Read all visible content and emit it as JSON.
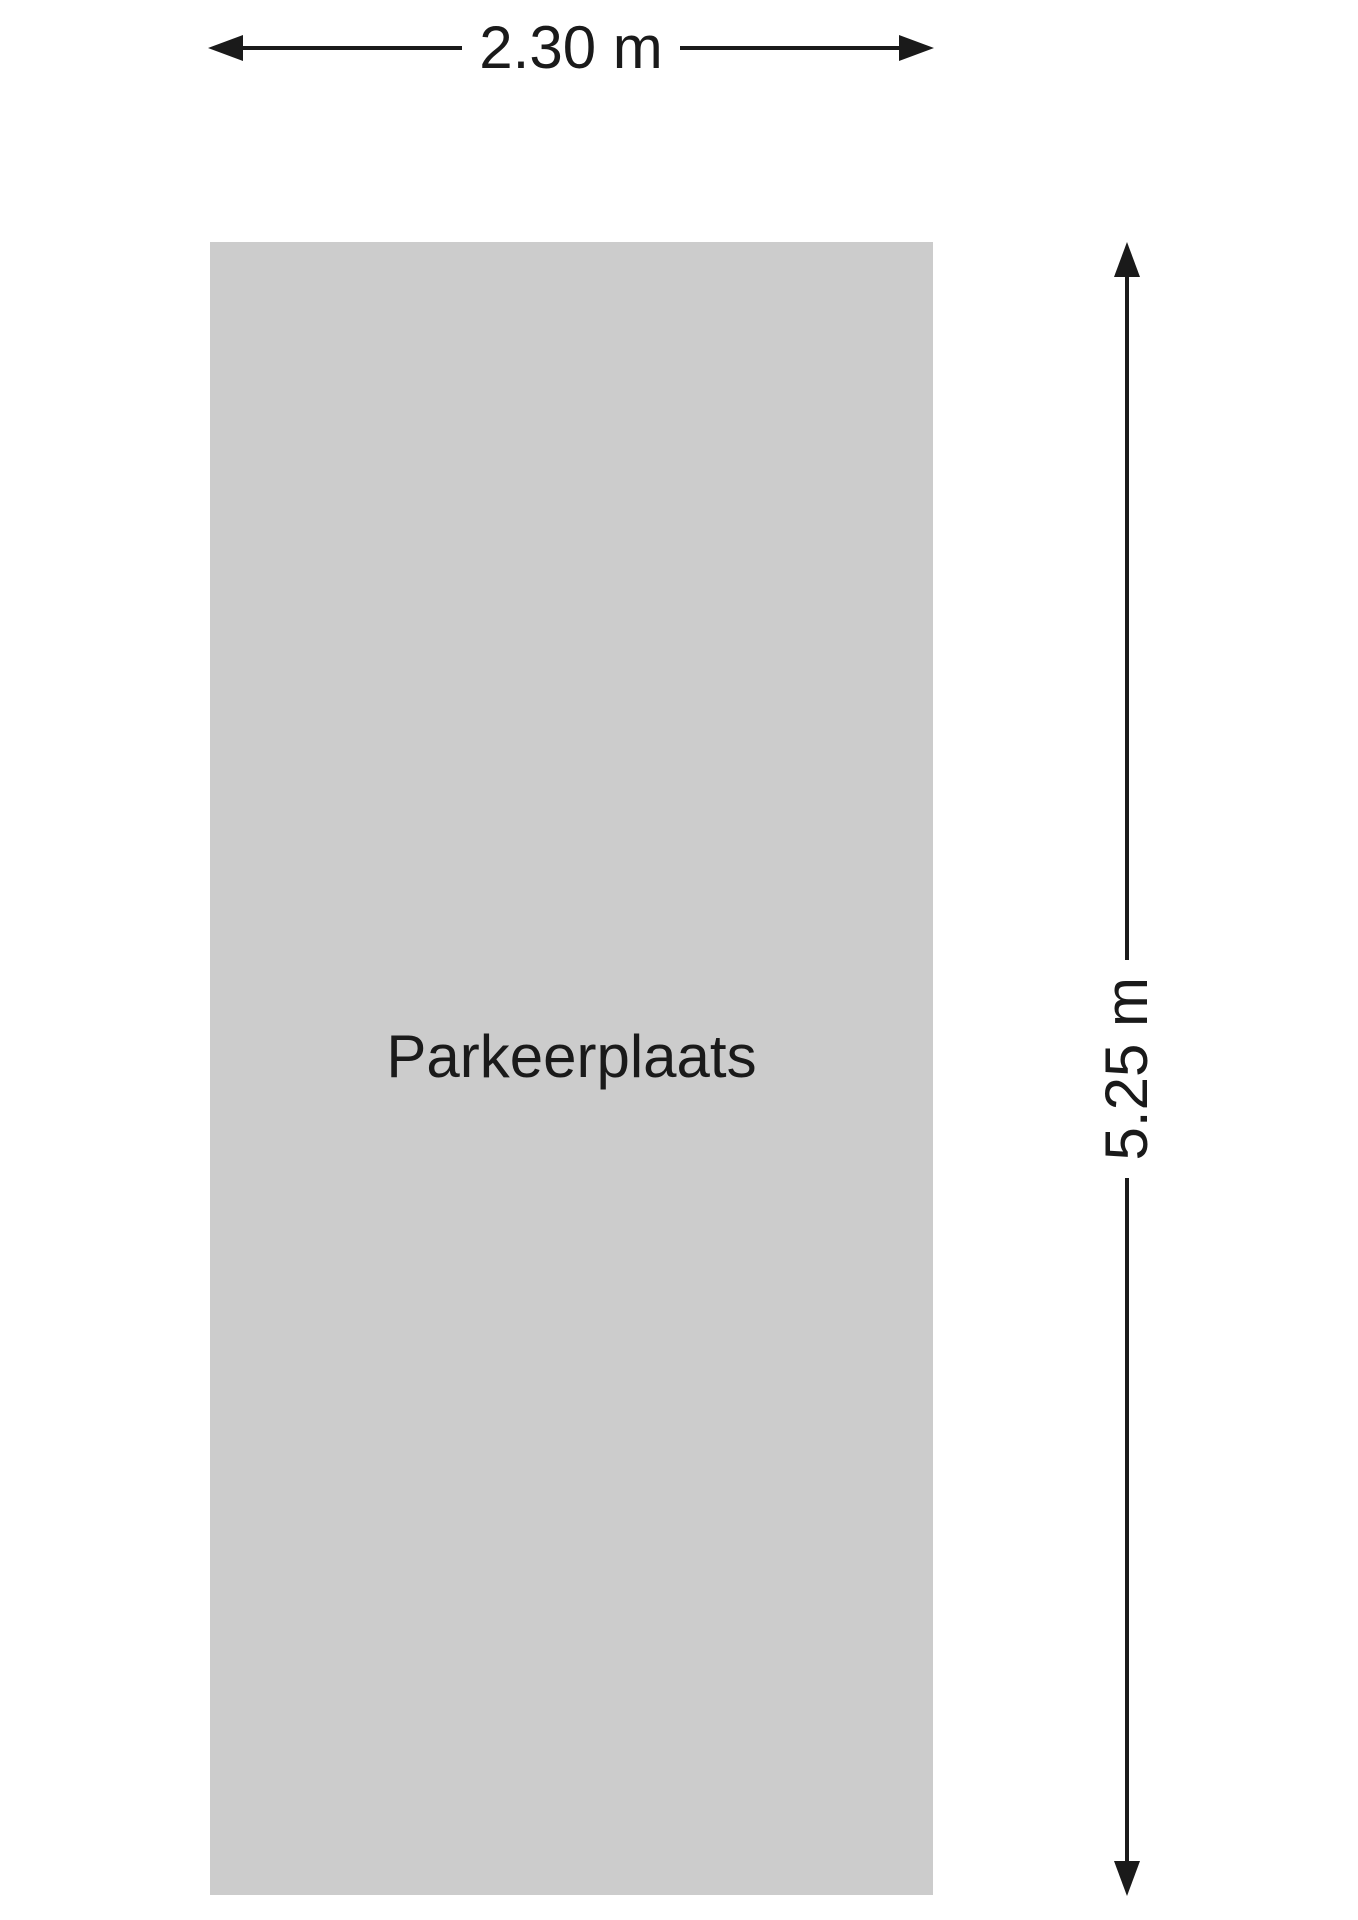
{
  "floorplan": {
    "ink": "#1a1a1a",
    "background": "#ffffff",
    "room": {
      "label": "Parkeerplaats",
      "fill": "#cccccc"
    },
    "dimensions": {
      "width": {
        "label": "2.30 m"
      },
      "height": {
        "label": "5.25 m"
      }
    }
  }
}
